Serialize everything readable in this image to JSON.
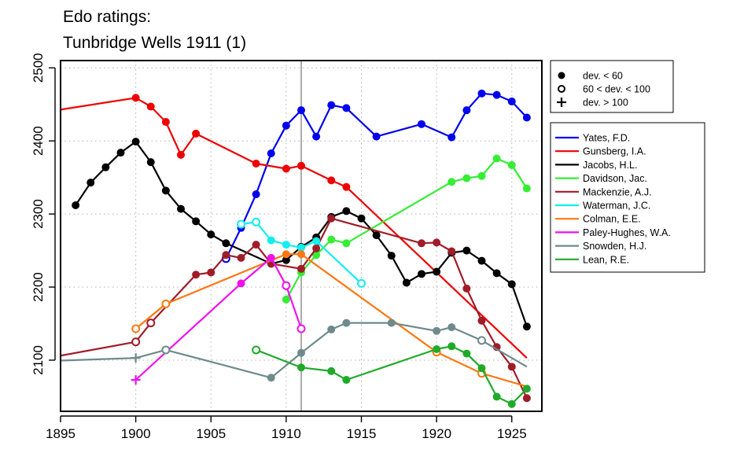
{
  "chart_data": {
    "type": "line",
    "title_lines": [
      "Edo ratings:",
      "Tunbridge Wells 1911 (1)"
    ],
    "xlabel": "",
    "ylabel": "",
    "xlim": [
      1895,
      1927
    ],
    "ylim": [
      2030,
      2510
    ],
    "x_ticks": [
      1895,
      1900,
      1905,
      1910,
      1915,
      1920,
      1925
    ],
    "y_ticks": [
      2100,
      2200,
      2300,
      2400,
      2500
    ],
    "grid": true,
    "event_line_x": 1911,
    "marker_legend": [
      {
        "marker": "dot",
        "label": "dev. < 60"
      },
      {
        "marker": "circle",
        "label": "60 < dev. < 100"
      },
      {
        "marker": "plus",
        "label": "dev. > 100"
      }
    ],
    "series": [
      {
        "name": "Yates, F.D.",
        "color": "#0000ee",
        "points": [
          {
            "x": 1906,
            "y": 2239,
            "m": "circle"
          },
          {
            "x": 1907,
            "y": 2281,
            "m": "dot"
          },
          {
            "x": 1908,
            "y": 2327,
            "m": "dot"
          },
          {
            "x": 1909,
            "y": 2383,
            "m": "dot"
          },
          {
            "x": 1910,
            "y": 2421,
            "m": "dot"
          },
          {
            "x": 1911,
            "y": 2442,
            "m": "dot"
          },
          {
            "x": 1912,
            "y": 2406,
            "m": "dot"
          },
          {
            "x": 1913,
            "y": 2449,
            "m": "dot"
          },
          {
            "x": 1914,
            "y": 2445,
            "m": "dot"
          },
          {
            "x": 1916,
            "y": 2406,
            "m": "dot"
          },
          {
            "x": 1919,
            "y": 2423,
            "m": "dot"
          },
          {
            "x": 1921,
            "y": 2405,
            "m": "dot"
          },
          {
            "x": 1922,
            "y": 2442,
            "m": "dot"
          },
          {
            "x": 1923,
            "y": 2465,
            "m": "dot"
          },
          {
            "x": 1924,
            "y": 2463,
            "m": "dot"
          },
          {
            "x": 1925,
            "y": 2454,
            "m": "dot"
          },
          {
            "x": 1926,
            "y": 2432,
            "m": "dot"
          }
        ]
      },
      {
        "name": "Gunsberg, I.A.",
        "color": "#ee0000",
        "points": [
          {
            "x": 1886,
            "y": 2414,
            "m": "dot"
          },
          {
            "x": 1900,
            "y": 2459,
            "m": "dot"
          },
          {
            "x": 1901,
            "y": 2447,
            "m": "dot"
          },
          {
            "x": 1902,
            "y": 2426,
            "m": "dot"
          },
          {
            "x": 1903,
            "y": 2381,
            "m": "dot"
          },
          {
            "x": 1904,
            "y": 2410,
            "m": "dot"
          },
          {
            "x": 1908,
            "y": 2369,
            "m": "dot"
          },
          {
            "x": 1910,
            "y": 2362,
            "m": "dot"
          },
          {
            "x": 1911,
            "y": 2366,
            "m": "dot"
          },
          {
            "x": 1913,
            "y": 2346,
            "m": "dot"
          },
          {
            "x": 1914,
            "y": 2337,
            "m": "dot"
          },
          {
            "x": 1926,
            "y": 2103,
            "m": "none"
          }
        ]
      },
      {
        "name": "Jacobs, H.L.",
        "color": "#000000",
        "points": [
          {
            "x": 1896,
            "y": 2312,
            "m": "dot"
          },
          {
            "x": 1897,
            "y": 2343,
            "m": "dot"
          },
          {
            "x": 1898,
            "y": 2364,
            "m": "dot"
          },
          {
            "x": 1899,
            "y": 2384,
            "m": "dot"
          },
          {
            "x": 1900,
            "y": 2399,
            "m": "dot"
          },
          {
            "x": 1901,
            "y": 2371,
            "m": "dot"
          },
          {
            "x": 1902,
            "y": 2332,
            "m": "dot"
          },
          {
            "x": 1903,
            "y": 2307,
            "m": "dot"
          },
          {
            "x": 1904,
            "y": 2290,
            "m": "dot"
          },
          {
            "x": 1905,
            "y": 2272,
            "m": "dot"
          },
          {
            "x": 1906,
            "y": 2260,
            "m": "dot"
          },
          {
            "x": 1909,
            "y": 2232,
            "m": "dot"
          },
          {
            "x": 1910,
            "y": 2237,
            "m": "dot"
          },
          {
            "x": 1911,
            "y": 2255,
            "m": "dot"
          },
          {
            "x": 1912,
            "y": 2268,
            "m": "dot"
          },
          {
            "x": 1913,
            "y": 2296,
            "m": "dot"
          },
          {
            "x": 1914,
            "y": 2304,
            "m": "dot"
          },
          {
            "x": 1915,
            "y": 2294,
            "m": "dot"
          },
          {
            "x": 1916,
            "y": 2271,
            "m": "dot"
          },
          {
            "x": 1917,
            "y": 2243,
            "m": "dot"
          },
          {
            "x": 1918,
            "y": 2206,
            "m": "dot"
          },
          {
            "x": 1919,
            "y": 2218,
            "m": "dot"
          },
          {
            "x": 1920,
            "y": 2221,
            "m": "dot"
          },
          {
            "x": 1921,
            "y": 2247,
            "m": "dot"
          },
          {
            "x": 1922,
            "y": 2250,
            "m": "dot"
          },
          {
            "x": 1923,
            "y": 2236,
            "m": "dot"
          },
          {
            "x": 1924,
            "y": 2219,
            "m": "dot"
          },
          {
            "x": 1925,
            "y": 2204,
            "m": "dot"
          },
          {
            "x": 1926,
            "y": 2146,
            "m": "dot"
          }
        ]
      },
      {
        "name": "Davidson, Jac.",
        "color": "#33ee33",
        "points": [
          {
            "x": 1910,
            "y": 2183,
            "m": "dot"
          },
          {
            "x": 1911,
            "y": 2220,
            "m": "dot"
          },
          {
            "x": 1912,
            "y": 2244,
            "m": "dot"
          },
          {
            "x": 1913,
            "y": 2265,
            "m": "dot"
          },
          {
            "x": 1914,
            "y": 2260,
            "m": "dot"
          },
          {
            "x": 1921,
            "y": 2344,
            "m": "dot"
          },
          {
            "x": 1922,
            "y": 2349,
            "m": "dot"
          },
          {
            "x": 1923,
            "y": 2352,
            "m": "dot"
          },
          {
            "x": 1924,
            "y": 2376,
            "m": "dot"
          },
          {
            "x": 1925,
            "y": 2367,
            "m": "dot"
          },
          {
            "x": 1926,
            "y": 2335,
            "m": "dot"
          }
        ]
      },
      {
        "name": "Mackenzie, A.J.",
        "color": "#a01c28",
        "points": [
          {
            "x": 1886,
            "y": 2072,
            "m": "none"
          },
          {
            "x": 1900,
            "y": 2125,
            "m": "circle"
          },
          {
            "x": 1901,
            "y": 2151,
            "m": "circle"
          },
          {
            "x": 1904,
            "y": 2217,
            "m": "dot"
          },
          {
            "x": 1905,
            "y": 2220,
            "m": "dot"
          },
          {
            "x": 1906,
            "y": 2244,
            "m": "dot"
          },
          {
            "x": 1907,
            "y": 2240,
            "m": "dot"
          },
          {
            "x": 1908,
            "y": 2258,
            "m": "dot"
          },
          {
            "x": 1909,
            "y": 2232,
            "m": "dot"
          },
          {
            "x": 1911,
            "y": 2225,
            "m": "dot"
          },
          {
            "x": 1912,
            "y": 2253,
            "m": "dot"
          },
          {
            "x": 1913,
            "y": 2294,
            "m": "dot"
          },
          {
            "x": 1919,
            "y": 2260,
            "m": "dot"
          },
          {
            "x": 1920,
            "y": 2261,
            "m": "dot"
          },
          {
            "x": 1921,
            "y": 2249,
            "m": "dot"
          },
          {
            "x": 1922,
            "y": 2198,
            "m": "dot"
          },
          {
            "x": 1923,
            "y": 2154,
            "m": "dot"
          },
          {
            "x": 1924,
            "y": 2118,
            "m": "dot"
          },
          {
            "x": 1925,
            "y": 2091,
            "m": "dot"
          },
          {
            "x": 1926,
            "y": 2048,
            "m": "dot"
          }
        ]
      },
      {
        "name": "Waterman, J.C.",
        "color": "#11eeee",
        "points": [
          {
            "x": 1907,
            "y": 2286,
            "m": "circle"
          },
          {
            "x": 1908,
            "y": 2289,
            "m": "circle"
          },
          {
            "x": 1909,
            "y": 2264,
            "m": "dot"
          },
          {
            "x": 1910,
            "y": 2258,
            "m": "dot"
          },
          {
            "x": 1911,
            "y": 2254,
            "m": "dot"
          },
          {
            "x": 1912,
            "y": 2263,
            "m": "dot"
          },
          {
            "x": 1915,
            "y": 2205,
            "m": "circle"
          }
        ]
      },
      {
        "name": "Colman, E.E.",
        "color": "#ff7711",
        "points": [
          {
            "x": 1900,
            "y": 2143,
            "m": "circle"
          },
          {
            "x": 1902,
            "y": 2177,
            "m": "circle"
          },
          {
            "x": 1910,
            "y": 2245,
            "m": "dot"
          },
          {
            "x": 1911,
            "y": 2245,
            "m": "dot"
          },
          {
            "x": 1920,
            "y": 2111,
            "m": "circle"
          },
          {
            "x": 1923,
            "y": 2082,
            "m": "circle"
          },
          {
            "x": 1926,
            "y": 2064,
            "m": "none"
          }
        ]
      },
      {
        "name": "Paley-Hughes, W.A.",
        "color": "#ee11ee",
        "points": [
          {
            "x": 1900,
            "y": 2073,
            "m": "plus"
          },
          {
            "x": 1907,
            "y": 2205,
            "m": "dot"
          },
          {
            "x": 1909,
            "y": 2240,
            "m": "dot"
          },
          {
            "x": 1910,
            "y": 2202,
            "m": "circle"
          },
          {
            "x": 1911,
            "y": 2143,
            "m": "circle"
          }
        ]
      },
      {
        "name": "Snowden, H.J.",
        "color": "#6e8a8c",
        "points": [
          {
            "x": 1886,
            "y": 2093,
            "m": "none"
          },
          {
            "x": 1900,
            "y": 2103,
            "m": "plus"
          },
          {
            "x": 1902,
            "y": 2114,
            "m": "circle"
          },
          {
            "x": 1909,
            "y": 2076,
            "m": "dot"
          },
          {
            "x": 1911,
            "y": 2110,
            "m": "dot"
          },
          {
            "x": 1913,
            "y": 2142,
            "m": "dot"
          },
          {
            "x": 1914,
            "y": 2151,
            "m": "dot"
          },
          {
            "x": 1917,
            "y": 2151,
            "m": "dot"
          },
          {
            "x": 1920,
            "y": 2140,
            "m": "dot"
          },
          {
            "x": 1921,
            "y": 2145,
            "m": "dot"
          },
          {
            "x": 1923,
            "y": 2127,
            "m": "circle"
          },
          {
            "x": 1926,
            "y": 2091,
            "m": "none"
          }
        ]
      },
      {
        "name": "Lean, R.E.",
        "color": "#1faa2a",
        "points": [
          {
            "x": 1908,
            "y": 2114,
            "m": "circle"
          },
          {
            "x": 1911,
            "y": 2090,
            "m": "dot"
          },
          {
            "x": 1913,
            "y": 2085,
            "m": "dot"
          },
          {
            "x": 1914,
            "y": 2073,
            "m": "dot"
          },
          {
            "x": 1920,
            "y": 2115,
            "m": "dot"
          },
          {
            "x": 1921,
            "y": 2119,
            "m": "dot"
          },
          {
            "x": 1922,
            "y": 2109,
            "m": "dot"
          },
          {
            "x": 1923,
            "y": 2089,
            "m": "dot"
          },
          {
            "x": 1924,
            "y": 2050,
            "m": "dot"
          },
          {
            "x": 1925,
            "y": 2040,
            "m": "dot"
          },
          {
            "x": 1926,
            "y": 2061,
            "m": "dot"
          }
        ]
      }
    ]
  }
}
